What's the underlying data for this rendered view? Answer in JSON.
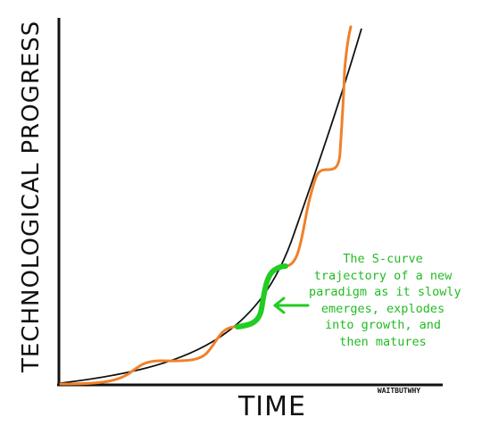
{
  "y_axis_label": "TECHNOLOGICAL PROGRESS",
  "x_axis_label": "TIME",
  "brand_tag": "WAITBUTWHY",
  "annotation_lines": [
    "The S-curve",
    "trajectory of a new",
    "paradigm as it slowly",
    "emerges, explodes",
    "into growth, and",
    "then matures"
  ],
  "colors": {
    "axes": "#111111",
    "smooth_curve": "#111111",
    "s_curve_steps": "#f0802a",
    "highlight": "#22cc22",
    "annotation_text": "#22bb22"
  }
}
